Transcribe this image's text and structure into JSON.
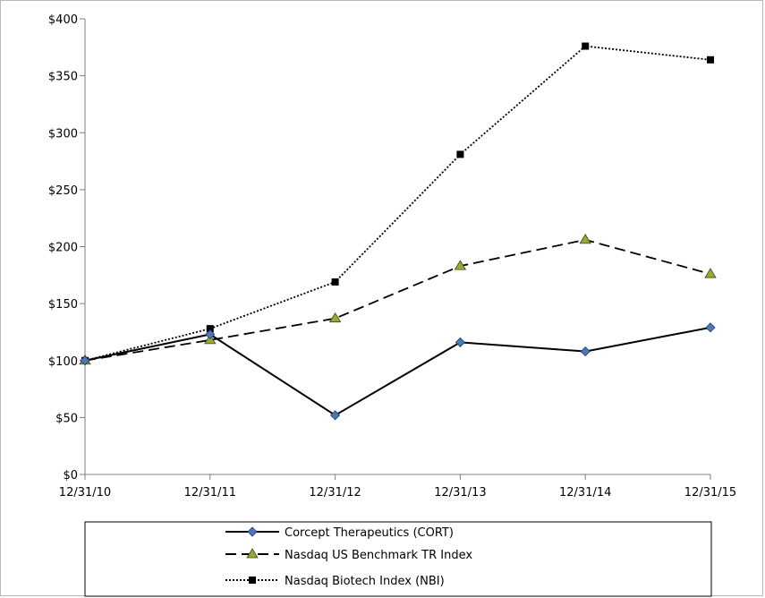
{
  "chart_data": {
    "type": "line",
    "title": "",
    "xlabel": "",
    "ylabel": "",
    "categories": [
      "12/31/10",
      "12/31/11",
      "12/31/12",
      "12/31/13",
      "12/31/14",
      "12/31/15"
    ],
    "ylim": [
      0,
      400
    ],
    "yticks": [
      0,
      50,
      100,
      150,
      200,
      250,
      300,
      350,
      400
    ],
    "ytick_labels": [
      "$0",
      "$50",
      "$100",
      "$150",
      "$200",
      "$250",
      "$300",
      "$350",
      "$400"
    ],
    "grid": false,
    "legend_position": "bottom",
    "series": [
      {
        "name": "Corcept Therapeutics (CORT)",
        "values": [
          100,
          123,
          52,
          116,
          108,
          129
        ],
        "color": "#000000",
        "line_style": "solid",
        "marker": "diamond",
        "marker_color": "#4a78b8"
      },
      {
        "name": "Nasdaq US Benchmark TR Index",
        "values": [
          100,
          118,
          137,
          183,
          206,
          176
        ],
        "color": "#000000",
        "line_style": "dashed",
        "marker": "triangle",
        "marker_color": "#9aa832"
      },
      {
        "name": "Nasdaq Biotech Index (NBI)",
        "values": [
          100,
          128,
          169,
          281,
          376,
          364
        ],
        "color": "#000000",
        "line_style": "dotted",
        "marker": "square",
        "marker_color": "#000000"
      }
    ]
  }
}
